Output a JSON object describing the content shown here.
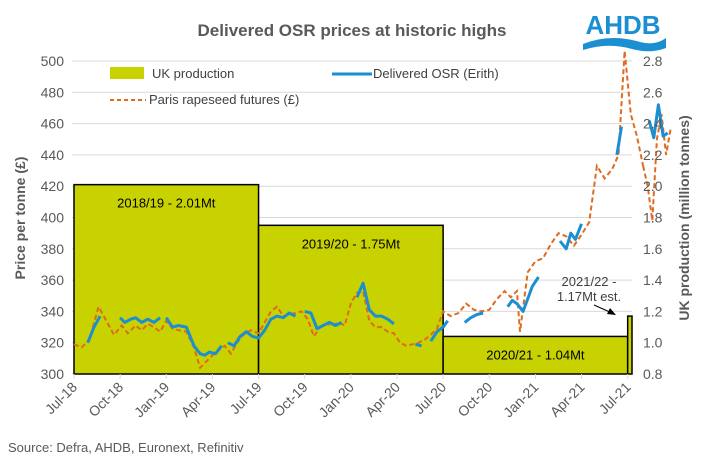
{
  "logo": {
    "text": "AHDB",
    "color": "#1B8FD1"
  },
  "source": "Source: Defra, AHDB, Euronext, Refinitiv",
  "chart_data": {
    "type": "bar+line",
    "title": "Delivered OSR prices at historic highs",
    "ylabel": "Price per tonne (£)",
    "y2label": "UK production (million tonnes)",
    "ylim": [
      300,
      500
    ],
    "y2lim": [
      0.8,
      2.8
    ],
    "yticks": [
      "300",
      "320",
      "340",
      "360",
      "380",
      "400",
      "420",
      "440",
      "460",
      "480",
      "500"
    ],
    "y2ticks": [
      "0.8",
      "1.0",
      "1.2",
      "1.4",
      "1.6",
      "1.8",
      "2.0",
      "2.2",
      "2.4",
      "2.6",
      "2.8"
    ],
    "xticks": [
      "Jul-18",
      "Oct-18",
      "Jan-19",
      "Apr-19",
      "Jul-19",
      "Oct-19",
      "Jan-20",
      "Apr-20",
      "Jul-20",
      "Oct-20",
      "Jan-21",
      "Apr-21",
      "Jul-21"
    ],
    "x_unit": "months since Jul-18",
    "x_range": [
      0,
      37.3
    ],
    "grid": true,
    "legend": [
      {
        "label": "UK production",
        "type": "bar",
        "color": "#C8D200"
      },
      {
        "label": "Delivered OSR (Erith)",
        "type": "line",
        "color": "#1B8FD1"
      },
      {
        "label": "Paris rapeseed futures (£)",
        "type": "dashed",
        "color": "#E06A1E"
      }
    ],
    "legend_position": "top-left",
    "bars": [
      {
        "label": "2018/19 - 2.01Mt",
        "start": 0,
        "end": 12,
        "value": 2.01
      },
      {
        "label": "2019/20 - 1.75Mt",
        "start": 12,
        "end": 24,
        "value": 1.75
      },
      {
        "label": "2020/21 - 1.04Mt",
        "start": 24,
        "end": 36,
        "value": 1.04
      },
      {
        "label": "2021/22 - 1.17Mt est.",
        "start": 36,
        "end": 37.3,
        "value": 1.17,
        "annotated": true
      }
    ],
    "annotation": {
      "line1": "2021/22 -",
      "line2": "1.17Mt est."
    },
    "series": [
      {
        "name": "Paris rapeseed futures (£)",
        "points": [
          [
            0,
            319
          ],
          [
            0.5,
            317
          ],
          [
            1,
            322
          ],
          [
            1.6,
            343
          ],
          [
            2.1,
            334
          ],
          [
            2.6,
            325
          ],
          [
            3.1,
            331
          ],
          [
            3.5,
            326
          ],
          [
            4,
            331
          ],
          [
            4.4,
            328
          ],
          [
            4.8,
            332
          ],
          [
            5.2,
            330
          ],
          [
            5.6,
            327
          ],
          [
            6,
            334
          ],
          [
            6.4,
            329
          ],
          [
            6.8,
            328
          ],
          [
            7.3,
            327
          ],
          [
            7.8,
            317
          ],
          [
            8.2,
            304
          ],
          [
            8.6,
            308
          ],
          [
            9,
            312
          ],
          [
            9.4,
            315
          ],
          [
            9.8,
            318
          ],
          [
            10.2,
            313
          ],
          [
            10.6,
            320
          ],
          [
            11,
            325
          ],
          [
            11.5,
            328
          ],
          [
            12,
            326
          ],
          [
            12.4,
            333
          ],
          [
            12.8,
            340
          ],
          [
            13.2,
            343
          ],
          [
            13.6,
            337
          ],
          [
            14,
            338
          ],
          [
            14.4,
            339
          ],
          [
            14.8,
            340
          ],
          [
            15.2,
            335
          ],
          [
            15.6,
            324
          ],
          [
            16,
            330
          ],
          [
            16.4,
            332
          ],
          [
            16.8,
            331
          ],
          [
            17.2,
            333
          ],
          [
            17.6,
            331
          ],
          [
            18,
            345
          ],
          [
            18.4,
            352
          ],
          [
            18.8,
            353
          ],
          [
            19.2,
            334
          ],
          [
            19.6,
            330
          ],
          [
            20,
            330
          ],
          [
            20.4,
            327
          ],
          [
            20.8,
            326
          ],
          [
            21.2,
            320
          ],
          [
            21.6,
            318
          ],
          [
            22,
            319
          ],
          [
            22.4,
            320
          ],
          [
            22.8,
            322
          ],
          [
            23.2,
            325
          ],
          [
            23.6,
            329
          ],
          [
            24,
            340
          ],
          [
            24.5,
            337
          ],
          [
            25,
            339
          ],
          [
            25.5,
            345
          ],
          [
            26,
            341
          ],
          [
            26.5,
            340
          ],
          [
            27,
            341
          ],
          [
            27.5,
            348
          ],
          [
            28,
            353
          ],
          [
            28.4,
            349
          ],
          [
            28.8,
            353
          ],
          [
            29,
            327
          ],
          [
            29.5,
            365
          ],
          [
            30,
            372
          ],
          [
            30.5,
            374
          ],
          [
            31,
            383
          ],
          [
            31.5,
            390
          ],
          [
            32,
            388
          ],
          [
            32.5,
            382
          ],
          [
            33,
            389
          ],
          [
            33.5,
            397
          ],
          [
            34,
            433
          ],
          [
            34.5,
            425
          ],
          [
            35,
            431
          ],
          [
            35.4,
            440
          ],
          [
            35.8,
            510
          ],
          [
            36.2,
            466
          ],
          [
            36.6,
            452
          ],
          [
            37,
            433
          ]
        ]
      },
      {
        "name": "Paris rapeseed futures (£) - Jul-21",
        "points": []
      },
      {
        "name": "Delivered OSR (Erith)",
        "segments": [
          [
            [
              0.9,
              320
            ],
            [
              1.3,
              330
            ],
            [
              1.7,
              337
            ]
          ],
          [
            [
              3,
              336
            ],
            [
              3.3,
              333
            ],
            [
              3.7,
              335
            ],
            [
              4,
              336
            ],
            [
              4.4,
              333
            ],
            [
              4.8,
              335
            ],
            [
              5.2,
              333
            ],
            [
              5.6,
              336
            ]
          ],
          [
            [
              6,
              336
            ],
            [
              6.4,
              330
            ],
            [
              6.8,
              331
            ],
            [
              7.3,
              330
            ],
            [
              7.8,
              318
            ],
            [
              8.2,
              313
            ],
            [
              8.5,
              312
            ],
            [
              8.8,
              314
            ],
            [
              9.2,
              313
            ],
            [
              9.6,
              318
            ]
          ],
          [
            [
              10,
              320
            ],
            [
              10.4,
              318
            ],
            [
              10.8,
              324
            ],
            [
              11.2,
              327
            ],
            [
              11.6,
              324
            ],
            [
              12,
              323
            ],
            [
              12.4,
              328
            ],
            [
              12.8,
              335
            ],
            [
              13.2,
              337
            ],
            [
              13.6,
              336
            ],
            [
              14,
              339
            ],
            [
              14.4,
              337
            ]
          ],
          [
            [
              15,
              340
            ],
            [
              15.4,
              339
            ],
            [
              15.8,
              329
            ],
            [
              16.2,
              331
            ],
            [
              16.6,
              333
            ],
            [
              17,
              331
            ],
            [
              17.4,
              333
            ]
          ],
          [
            [
              18.4,
              349
            ],
            [
              18.8,
              358
            ],
            [
              19.2,
              341
            ],
            [
              19.6,
              337
            ],
            [
              20,
              337
            ],
            [
              20.4,
              335
            ],
            [
              20.8,
              332
            ]
          ],
          [
            [
              22.2,
              319
            ],
            [
              22.6,
              318
            ]
          ],
          [
            [
              23.2,
              321
            ],
            [
              23.6,
              327
            ],
            [
              24,
              330
            ],
            [
              24.3,
              334
            ]
          ],
          [
            [
              25.4,
              333
            ],
            [
              25.8,
              336
            ],
            [
              26.2,
              338
            ],
            [
              26.6,
              339
            ]
          ],
          [
            [
              28.2,
              343
            ],
            [
              28.5,
              347
            ],
            [
              28.8,
              345
            ],
            [
              29.2,
              340
            ],
            [
              29.5,
              348
            ],
            [
              29.8,
              356
            ],
            [
              30.2,
              362
            ]
          ],
          [
            [
              31.6,
              385
            ],
            [
              32,
              380
            ],
            [
              32.3,
              390
            ],
            [
              32.6,
              386
            ],
            [
              33,
              396
            ]
          ],
          [
            [
              35.3,
              440
            ],
            [
              35.6,
              458
            ]
          ],
          [
            [
              37.4,
              462
            ],
            [
              37.7,
              451
            ],
            [
              38,
              472
            ],
            [
              38.3,
              452
            ],
            [
              38.6,
              454
            ]
          ]
        ]
      }
    ]
  }
}
